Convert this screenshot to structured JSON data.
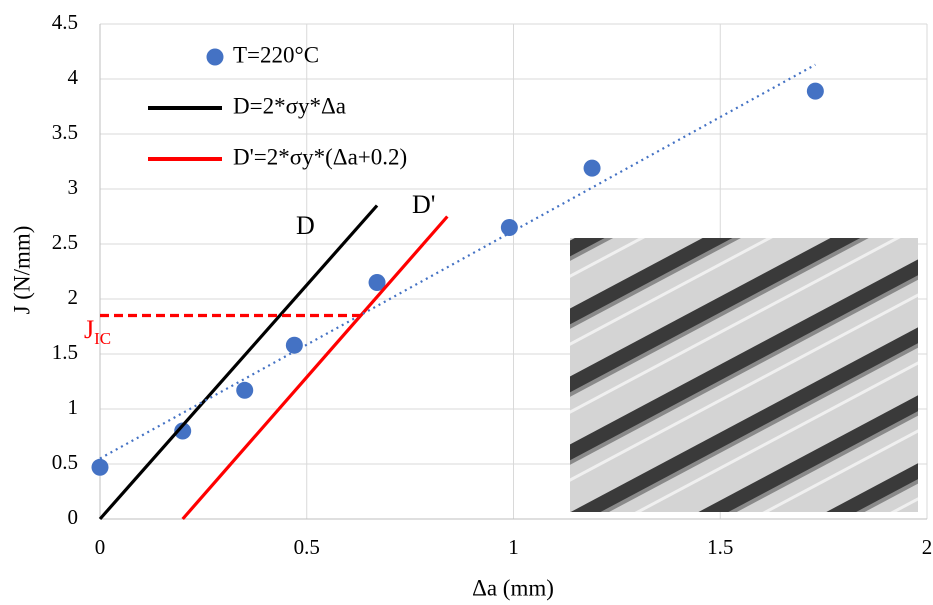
{
  "chart_data": {
    "type": "scatter",
    "x_label": "Δa (mm)",
    "y_label": "J (N/mm)",
    "xlim": [
      0,
      2
    ],
    "ylim": [
      0,
      4.5
    ],
    "xticks": [
      0,
      0.5,
      1,
      1.5,
      2
    ],
    "yticks": [
      0,
      0.5,
      1,
      1.5,
      2,
      2.5,
      3,
      3.5,
      4,
      4.5
    ],
    "grid": true,
    "series": [
      {
        "name": "T=220°C",
        "color": "#4472c4",
        "style": "points",
        "x": [
          0,
          0.2,
          0.35,
          0.47,
          0.67,
          0.99,
          1.19,
          1.73
        ],
        "values": [
          0.47,
          0.8,
          1.17,
          1.58,
          2.15,
          2.65,
          3.19,
          3.89
        ]
      },
      {
        "name": "D=2*σy*Δa",
        "color": "#000000",
        "style": "solid",
        "x": [
          0,
          0.67
        ],
        "values": [
          0,
          2.85
        ]
      },
      {
        "name": "D'=2*σy*(Δa+0.2)",
        "color": "#ff0000",
        "style": "solid",
        "x": [
          0.2,
          0.84
        ],
        "values": [
          0,
          2.75
        ]
      },
      {
        "color": "#4472c4",
        "style": "dotted",
        "x": [
          0,
          1.73
        ],
        "values": [
          0.55,
          4.13
        ]
      },
      {
        "color": "#ff0000",
        "style": "dashed",
        "x": [
          0,
          0.63
        ],
        "values": [
          1.85,
          1.85
        ]
      }
    ],
    "annotations": [
      "D",
      "D'",
      "J",
      "IC"
    ]
  }
}
